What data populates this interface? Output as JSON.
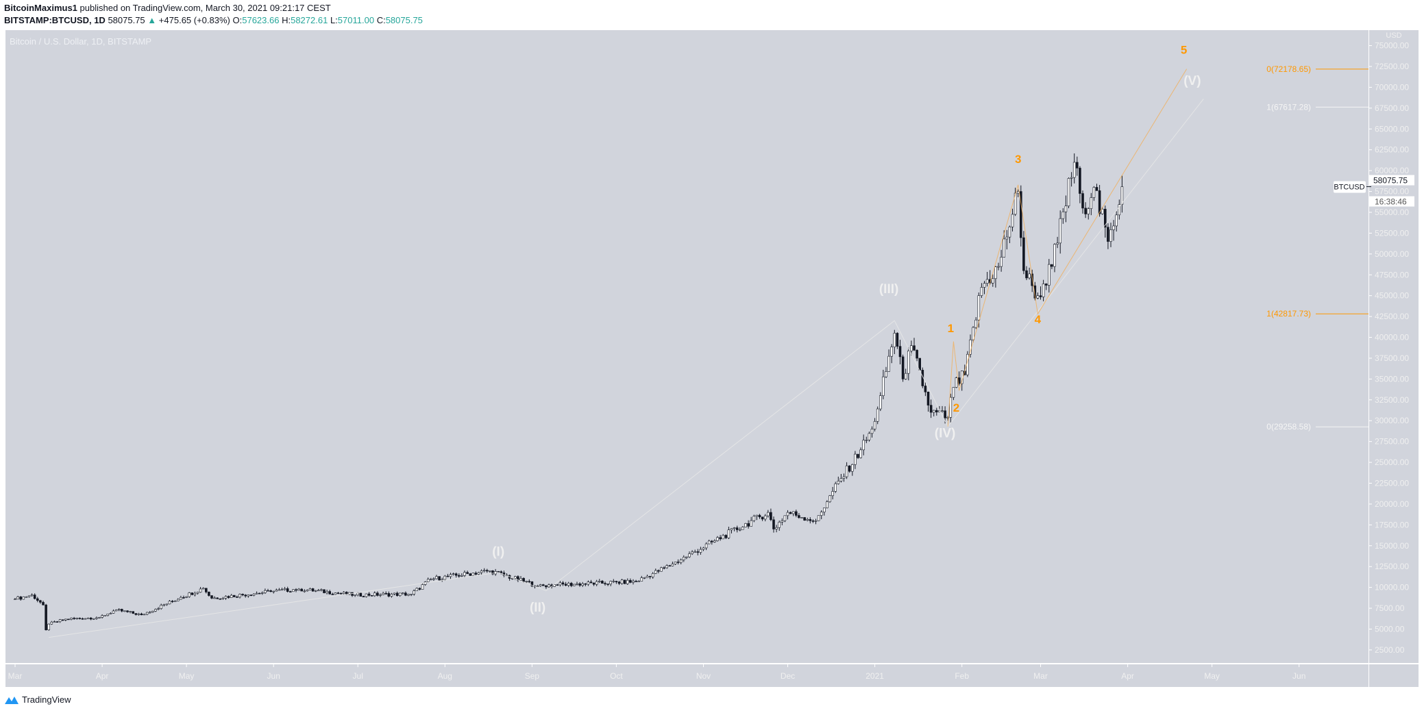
{
  "header": {
    "publisher": "BitcoinMaximus1",
    "published_text": "published on TradingView.com, March 30, 2021 09:21:17 CEST",
    "symbol": "BITSTAMP:BTCUSD, 1D",
    "last": "58075.75",
    "change": "+475.65 (+0.83%)",
    "o_label": "O:",
    "o": "57623.66",
    "h_label": "H:",
    "h": "58272.61",
    "l_label": "L:",
    "l": "57011.00",
    "c_label": "C:",
    "c": "58075.75",
    "up_color": "#26a69a"
  },
  "chart_title": "Bitcoin / U.S. Dollar, 1D, BITSTAMP",
  "footer": {
    "logo_text": "TradingView",
    "logo_color": "#2196f3"
  },
  "price_tag": {
    "symbol": "BTCUSD",
    "price": "58075.75",
    "countdown": "16:38:46"
  },
  "chart_data": {
    "type": "candlestick",
    "currency": "USD",
    "ylim": [
      0,
      76000
    ],
    "y_ticks": [
      "2500.00",
      "5000.00",
      "7500.00",
      "10000.00",
      "12500.00",
      "15000.00",
      "17500.00",
      "20000.00",
      "22500.00",
      "25000.00",
      "27500.00",
      "30000.00",
      "32500.00",
      "35000.00",
      "37500.00",
      "40000.00",
      "42500.00",
      "45000.00",
      "47500.00",
      "50000.00",
      "52500.00",
      "55000.00",
      "57500.00",
      "60000.00",
      "62500.00",
      "65000.00",
      "67500.00",
      "70000.00",
      "72500.00",
      "75000.00"
    ],
    "x_ticks": [
      {
        "label": "Mar",
        "date": "2020-03-01"
      },
      {
        "label": "Apr",
        "date": "2020-04-01"
      },
      {
        "label": "May",
        "date": "2020-05-01"
      },
      {
        "label": "Jun",
        "date": "2020-06-01"
      },
      {
        "label": "Jul",
        "date": "2020-07-01"
      },
      {
        "label": "Aug",
        "date": "2020-08-01"
      },
      {
        "label": "Sep",
        "date": "2020-09-01"
      },
      {
        "label": "Oct",
        "date": "2020-10-01"
      },
      {
        "label": "Nov",
        "date": "2020-11-01"
      },
      {
        "label": "Dec",
        "date": "2020-12-01"
      },
      {
        "label": "2021",
        "date": "2021-01-01"
      },
      {
        "label": "Feb",
        "date": "2021-02-01"
      },
      {
        "label": "Mar",
        "date": "2021-03-01"
      },
      {
        "label": "Apr",
        "date": "2021-04-01"
      },
      {
        "label": "May",
        "date": "2021-05-01"
      },
      {
        "label": "Jun",
        "date": "2021-06-01"
      }
    ],
    "price_path": [
      [
        "2020-03-01",
        8600
      ],
      [
        "2020-03-07",
        9100
      ],
      [
        "2020-03-11",
        7900
      ],
      [
        "2020-03-12",
        4900
      ],
      [
        "2020-03-13",
        5600
      ],
      [
        "2020-03-19",
        6200
      ],
      [
        "2020-03-31",
        6400
      ],
      [
        "2020-04-06",
        7300
      ],
      [
        "2020-04-15",
        6700
      ],
      [
        "2020-04-29",
        8800
      ],
      [
        "2020-05-07",
        9900
      ],
      [
        "2020-05-10",
        8700
      ],
      [
        "2020-05-31",
        9500
      ],
      [
        "2020-06-10",
        9800
      ],
      [
        "2020-06-30",
        9100
      ],
      [
        "2020-07-20",
        9200
      ],
      [
        "2020-07-27",
        11000
      ],
      [
        "2020-08-17",
        12000
      ],
      [
        "2020-09-03",
        10200
      ],
      [
        "2020-09-10",
        10300
      ],
      [
        "2020-10-08",
        10700
      ],
      [
        "2020-10-21",
        12800
      ],
      [
        "2020-11-05",
        15600
      ],
      [
        "2020-11-24",
        19000
      ],
      [
        "2020-11-26",
        17000
      ],
      [
        "2020-12-01",
        19000
      ],
      [
        "2020-12-11",
        18000
      ],
      [
        "2020-12-16",
        21000
      ],
      [
        "2020-12-27",
        26500
      ],
      [
        "2020-12-31",
        29000
      ],
      [
        "2021-01-03",
        33000
      ],
      [
        "2021-01-08",
        40500
      ],
      [
        "2021-01-11",
        35000
      ],
      [
        "2021-01-14",
        39000
      ],
      [
        "2021-01-21",
        31000
      ],
      [
        "2021-01-27",
        30400
      ],
      [
        "2021-01-29",
        34000
      ],
      [
        "2021-02-02",
        35500
      ],
      [
        "2021-02-08",
        46000
      ],
      [
        "2021-02-14",
        48500
      ],
      [
        "2021-02-21",
        57500
      ],
      [
        "2021-02-23",
        48000
      ],
      [
        "2021-02-28",
        45000
      ],
      [
        "2021-03-05",
        48500
      ],
      [
        "2021-03-13",
        61000
      ],
      [
        "2021-03-16",
        55500
      ],
      [
        "2021-03-20",
        58000
      ],
      [
        "2021-03-25",
        51500
      ],
      [
        "2021-03-30",
        58075.75
      ]
    ],
    "wave_labels": [
      {
        "text": "(I)",
        "date": "2020-08-20",
        "price": 13800,
        "color": "#f0f0f0"
      },
      {
        "text": "(II)",
        "date": "2020-09-03",
        "price": 7100,
        "color": "#f0f0f0"
      },
      {
        "text": "(III)",
        "date": "2021-01-06",
        "price": 45300,
        "color": "#f0f0f0"
      },
      {
        "text": "(IV)",
        "date": "2021-01-26",
        "price": 28000,
        "color": "#f0f0f0"
      },
      {
        "text": "(V)",
        "date": "2021-04-24",
        "price": 70300,
        "color": "#f0f0f0"
      },
      {
        "text": "1",
        "date": "2021-01-28",
        "price": 40600,
        "color": "#ff9800"
      },
      {
        "text": "2",
        "date": "2021-01-30",
        "price": 31100,
        "color": "#ff9800"
      },
      {
        "text": "3",
        "date": "2021-02-21",
        "price": 60900,
        "color": "#ff9800"
      },
      {
        "text": "4",
        "date": "2021-02-28",
        "price": 41700,
        "color": "#ff9800"
      },
      {
        "text": "5",
        "date": "2021-04-21",
        "price": 74000,
        "color": "#ff9800"
      }
    ],
    "wave_lines": [
      {
        "color": "#e8e8e8",
        "points": [
          [
            "2020-03-13",
            4000
          ],
          [
            "2020-08-20",
            11800
          ],
          [
            "2020-09-06",
            9600
          ],
          [
            "2021-01-08",
            42000
          ],
          [
            "2021-01-27",
            29300
          ],
          [
            "2021-04-28",
            68600
          ]
        ]
      },
      {
        "color": "#f0b060",
        "points": [
          [
            "2021-01-27",
            29300
          ],
          [
            "2021-01-29",
            39500
          ],
          [
            "2021-01-31",
            33600
          ],
          [
            "2021-02-21",
            58300
          ],
          [
            "2021-02-28",
            42800
          ],
          [
            "2021-04-22",
            72200
          ]
        ]
      }
    ],
    "fib_levels": [
      {
        "label": "0(72178.65)",
        "price": 72178.65,
        "color": "#ff9800"
      },
      {
        "label": "1(67617.28)",
        "price": 67617.28,
        "color": "#f5f5f5"
      },
      {
        "label": "1(42817.73)",
        "price": 42817.73,
        "color": "#ff9800"
      },
      {
        "label": "0(29258.58)",
        "price": 29258.58,
        "color": "#f5f5f5"
      }
    ],
    "up_color": "#ffffff",
    "down_color": "#131722"
  }
}
